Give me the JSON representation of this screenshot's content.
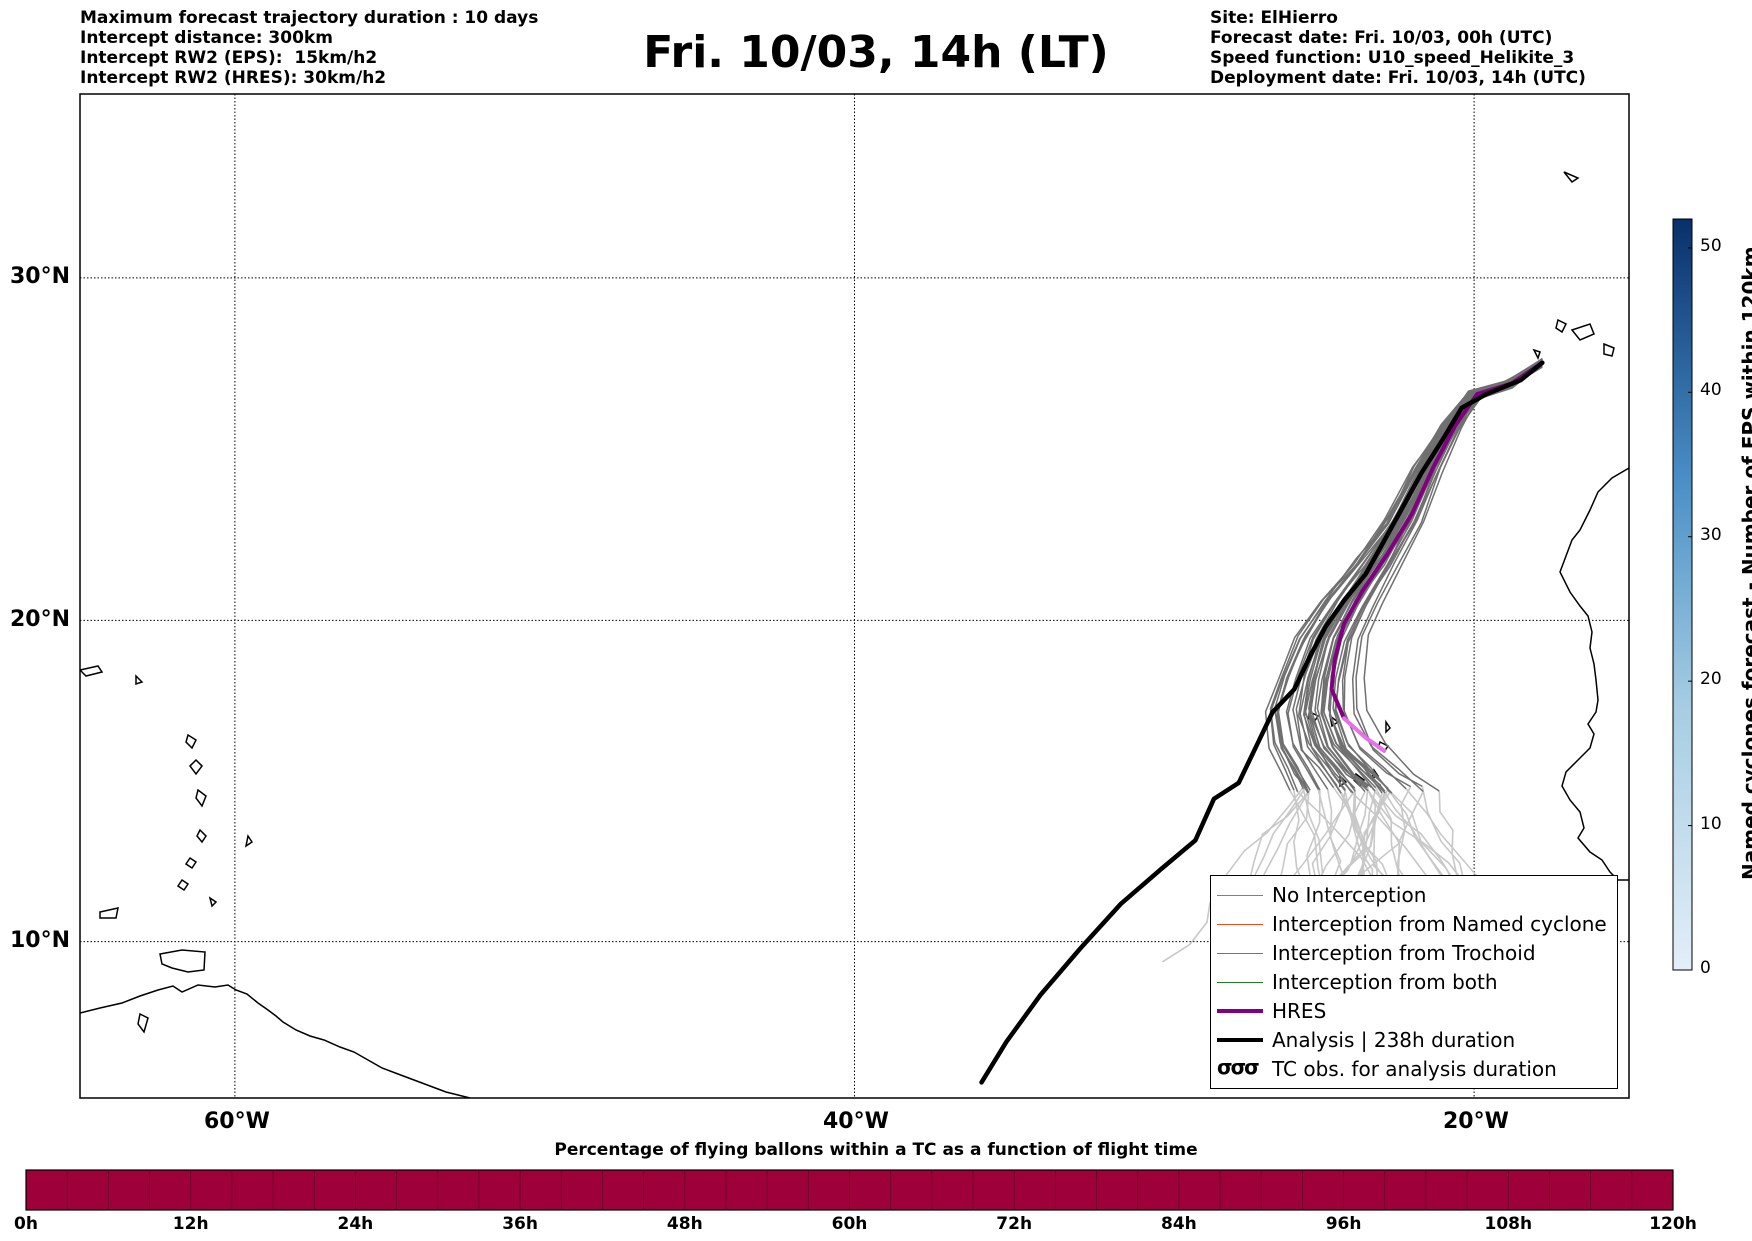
{
  "header_left": [
    "Maximum forecast trajectory duration : 10 days",
    "Intercept distance: 300km",
    "Intercept RW2 (EPS):  15km/h2",
    "Intercept RW2 (HRES): 30km/h2"
  ],
  "header_right": [
    "Site: ElHierro",
    "Forecast date: Fri. 10/03, 00h (UTC)",
    "Speed function: U10_speed_Helikite_3",
    "Deployment date: Fri. 10/03, 14h (UTC)"
  ],
  "title": "Fri. 10/03, 14h (LT)",
  "map": {
    "lon_range": [
      -65,
      -15
    ],
    "lat_range": [
      5,
      35
    ],
    "lat_ticks": [
      {
        "lat": 30,
        "label": "30°N"
      },
      {
        "lat": 20,
        "label": "20°N"
      },
      {
        "lat": 10,
        "label": "10°N"
      }
    ],
    "lon_ticks": [
      {
        "lon": -60,
        "label": "60°W"
      },
      {
        "lon": -40,
        "label": "40°W"
      },
      {
        "lon": -20,
        "label": "20°W"
      }
    ]
  },
  "colorbar": {
    "label": "Named cyclones forecast - Number of EPS within 120km",
    "ticks": [
      "0",
      "10",
      "20",
      "30",
      "40",
      "50"
    ],
    "max": 52,
    "color_low": "#e3eef9",
    "color_high": "#08306b"
  },
  "legend": [
    {
      "label": "No Interception",
      "color": "#808080",
      "style": "thin"
    },
    {
      "label": "Interception from Named cyclone",
      "color": "#e8501e",
      "style": "thin"
    },
    {
      "label": "Interception from Trochoid",
      "color": "#808020",
      "style": "thin"
    },
    {
      "label": "Interception from both",
      "color": "#208020",
      "style": "thin"
    },
    {
      "label": "HRES",
      "color": "#800080",
      "style": "thick"
    },
    {
      "label": "Analysis | 238h duration",
      "color": "#000000",
      "style": "thick"
    },
    {
      "label": "TC obs. for analysis duration",
      "color": "#000000",
      "style": "symbol",
      "symbol": "σσσ"
    }
  ],
  "time_bar": {
    "title": "Percentage of flying ballons within a TC as a function of flight time",
    "ticks": [
      "0h",
      "12h",
      "24h",
      "36h",
      "48h",
      "60h",
      "72h",
      "84h",
      "96h",
      "108h",
      "120h"
    ],
    "color": "#9e003a"
  },
  "tracks": {
    "analysis": [
      [
        -17.8,
        27.6
      ],
      [
        -18.5,
        27.1
      ],
      [
        -19.6,
        26.7
      ],
      [
        -20.4,
        26.3
      ],
      [
        -21.0,
        25.4
      ],
      [
        -21.7,
        24.4
      ],
      [
        -22.3,
        23.4
      ],
      [
        -22.9,
        22.4
      ],
      [
        -23.5,
        21.4
      ],
      [
        -24.2,
        20.6
      ],
      [
        -24.8,
        19.8
      ],
      [
        -25.3,
        18.9
      ],
      [
        -25.8,
        17.9
      ],
      [
        -26.5,
        17.2
      ],
      [
        -27.0,
        16.2
      ],
      [
        -27.6,
        15.0
      ],
      [
        -28.4,
        14.5
      ],
      [
        -29.0,
        13.2
      ],
      [
        -30.1,
        12.3
      ],
      [
        -31.4,
        11.2
      ],
      [
        -32.7,
        9.8
      ],
      [
        -34.0,
        8.3
      ],
      [
        -35.1,
        6.8
      ],
      [
        -35.9,
        5.5
      ]
    ],
    "hres": [
      [
        -17.8,
        27.6
      ],
      [
        -18.8,
        27.0
      ],
      [
        -19.9,
        26.7
      ],
      [
        -20.6,
        25.8
      ],
      [
        -21.3,
        24.6
      ],
      [
        -22.0,
        23.2
      ],
      [
        -22.8,
        22.0
      ],
      [
        -23.6,
        20.9
      ],
      [
        -24.2,
        19.9
      ],
      [
        -24.5,
        18.8
      ],
      [
        -24.6,
        17.9
      ],
      [
        -24.2,
        17.0
      ],
      [
        -23.5,
        16.4
      ],
      [
        -22.9,
        16.0
      ]
    ]
  }
}
